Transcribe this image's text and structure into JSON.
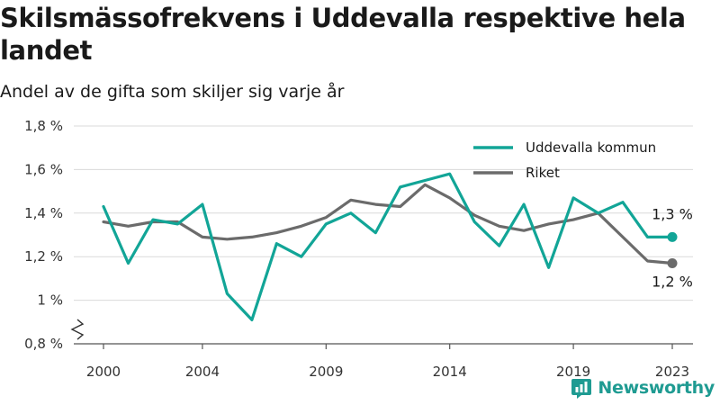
{
  "title": "Skilsmässofrekvens i Uddevalla respektive hela landet",
  "subtitle": "Andel av de gifta som skiljer sig varje år",
  "brand": {
    "name": "Newsworthy",
    "icon": "bar-chart-logo-icon",
    "color": "#1f9b92"
  },
  "chart_data": {
    "type": "line",
    "x": [
      2000,
      2001,
      2002,
      2003,
      2004,
      2005,
      2006,
      2007,
      2008,
      2009,
      2010,
      2011,
      2012,
      2013,
      2014,
      2015,
      2016,
      2017,
      2018,
      2019,
      2020,
      2021,
      2022,
      2023
    ],
    "series": [
      {
        "name": "Uddevalla kommun",
        "color": "#12a597",
        "values": [
          1.43,
          1.17,
          1.37,
          1.35,
          1.44,
          1.03,
          0.91,
          1.26,
          1.2,
          1.35,
          1.4,
          1.31,
          1.52,
          1.55,
          1.58,
          1.36,
          1.25,
          1.44,
          1.15,
          1.47,
          1.4,
          1.45,
          1.29,
          1.29
        ],
        "end_label": "1,3 %"
      },
      {
        "name": "Riket",
        "color": "#6b6b6b",
        "values": [
          1.36,
          1.34,
          1.36,
          1.36,
          1.29,
          1.28,
          1.29,
          1.31,
          1.34,
          1.38,
          1.46,
          1.44,
          1.43,
          1.53,
          1.47,
          1.39,
          1.34,
          1.32,
          1.35,
          1.37,
          1.4,
          1.29,
          1.18,
          1.17
        ],
        "end_label": "1,2 %"
      }
    ],
    "y_ticks": [
      0.8,
      1.0,
      1.2,
      1.4,
      1.6,
      1.8
    ],
    "y_tick_labels": [
      "0,8 %",
      "1 %",
      "1,2 %",
      "1,4 %",
      "1,6 %",
      "1,8 %"
    ],
    "x_ticks": [
      2000,
      2004,
      2009,
      2014,
      2019,
      2023
    ],
    "x_tick_labels": [
      "2000",
      "2004",
      "2009",
      "2014",
      "2019",
      "2023"
    ],
    "ylim": [
      0.8,
      1.8
    ],
    "xlim": [
      2000,
      2023
    ],
    "grid": "horizontal",
    "axis_break": true,
    "legend_position": "top-right",
    "xlabel": "",
    "ylabel": ""
  }
}
